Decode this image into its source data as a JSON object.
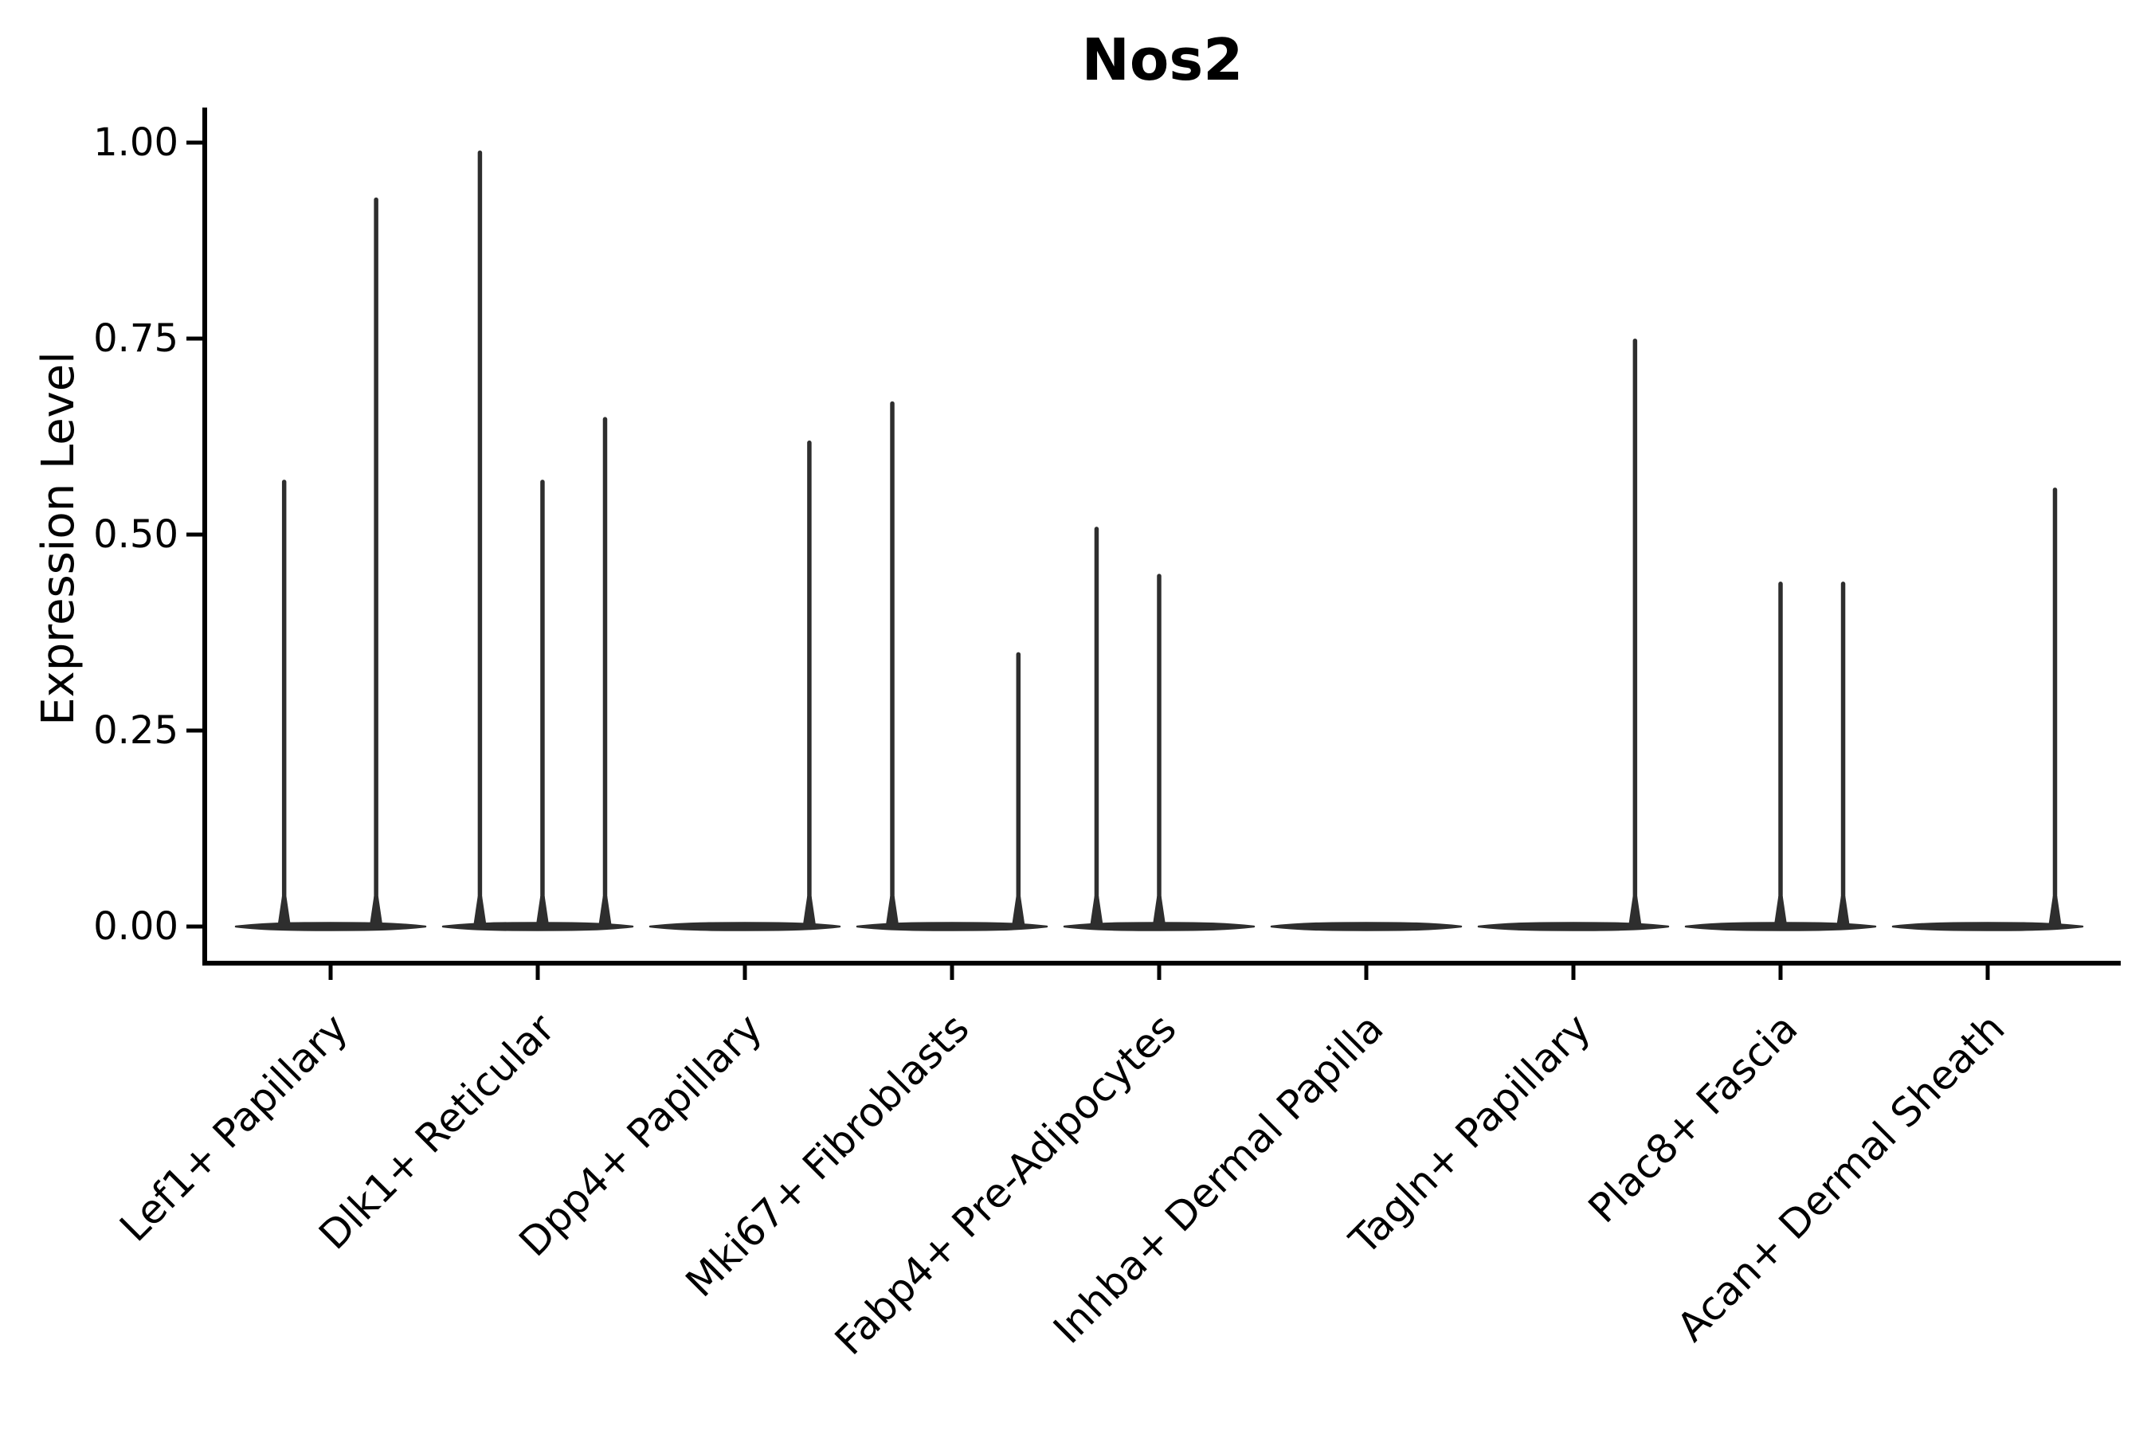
{
  "chart_data": {
    "type": "violin",
    "title": "Nos2",
    "ylabel": "Expression Level",
    "xlabel": "",
    "ylim": [
      -0.05,
      1.05
    ],
    "grid": false,
    "legend": "none",
    "x_tick_rotation": 45,
    "y_ticks": [
      {
        "value": 0.0,
        "label": "0.00"
      },
      {
        "value": 0.25,
        "label": "0.25"
      },
      {
        "value": 0.5,
        "label": "0.50"
      },
      {
        "value": 0.75,
        "label": "0.75"
      },
      {
        "value": 1.0,
        "label": "1.00"
      }
    ],
    "categories": [
      "Lef1+ Papillary",
      "Dlk1+ Reticular",
      "Dpp4+ Papillary",
      "Mki67+ Fibroblasts",
      "Fabp4+ Pre-Adipocytes",
      "Inhba+ Dermal Papilla",
      "Tagln+ Papillary",
      "Plac8+ Fascia",
      "Acan+ Dermal Sheath"
    ],
    "violins": [
      {
        "category": "Lef1+ Papillary",
        "baseline_value": 0.0,
        "spikes": [
          {
            "offset_frac": -0.49,
            "value": 0.57
          },
          {
            "offset_frac": 0.48,
            "value": 0.93
          }
        ]
      },
      {
        "category": "Dlk1+ Reticular",
        "baseline_value": 0.0,
        "spikes": [
          {
            "offset_frac": -0.61,
            "value": 0.99
          },
          {
            "offset_frac": 0.05,
            "value": 0.57
          },
          {
            "offset_frac": 0.71,
            "value": 0.65
          }
        ]
      },
      {
        "category": "Dpp4+ Papillary",
        "baseline_value": 0.0,
        "spikes": [
          {
            "offset_frac": 0.68,
            "value": 0.62
          }
        ]
      },
      {
        "category": "Mki67+ Fibroblasts",
        "baseline_value": 0.0,
        "spikes": [
          {
            "offset_frac": -0.63,
            "value": 0.67
          },
          {
            "offset_frac": 0.7,
            "value": 0.35
          }
        ]
      },
      {
        "category": "Fabp4+ Pre-Adipocytes",
        "baseline_value": 0.0,
        "spikes": [
          {
            "offset_frac": -0.66,
            "value": 0.51
          },
          {
            "offset_frac": 0.0,
            "value": 0.45
          }
        ]
      },
      {
        "category": "Inhba+ Dermal Papilla",
        "baseline_value": 0.0,
        "spikes": []
      },
      {
        "category": "Tagln+ Papillary",
        "baseline_value": 0.0,
        "spikes": [
          {
            "offset_frac": 0.65,
            "value": 0.75
          }
        ]
      },
      {
        "category": "Plac8+ Fascia",
        "baseline_value": 0.0,
        "spikes": [
          {
            "offset_frac": 0.0,
            "value": 0.44
          },
          {
            "offset_frac": 0.66,
            "value": 0.44
          }
        ]
      },
      {
        "category": "Acan+ Dermal Sheath",
        "baseline_value": 0.0,
        "spikes": [
          {
            "offset_frac": 0.71,
            "value": 0.56
          }
        ]
      }
    ],
    "colors": {
      "violin": "#2e2e2e",
      "axis": "#000000",
      "text": "#000000",
      "background": "#ffffff"
    }
  }
}
